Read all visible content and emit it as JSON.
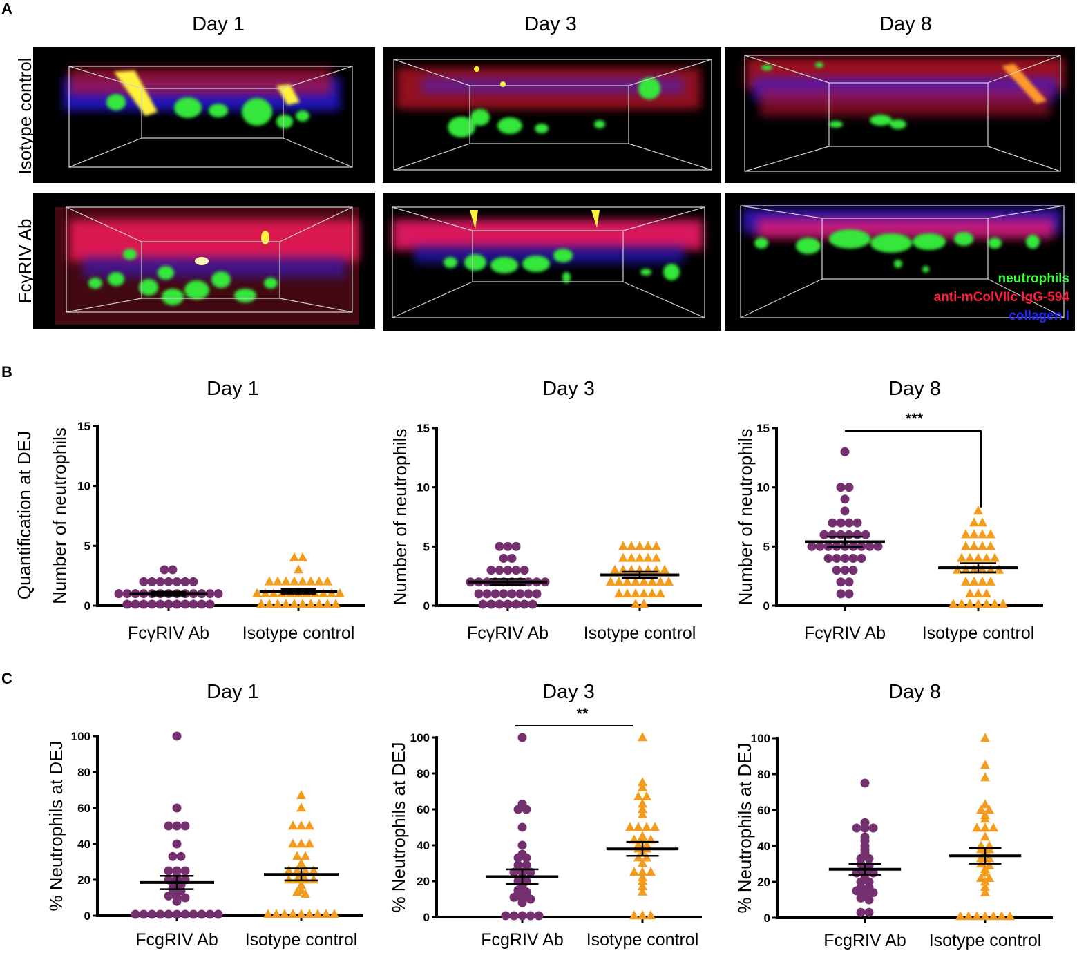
{
  "panel_labels": [
    "A",
    "B",
    "C"
  ],
  "colors": {
    "fcgriv": "#74306e",
    "isotype": "#f29b1d",
    "green": "#39ff3d",
    "red": "#ff1c3c",
    "blue": "#2424ff",
    "axis": "#000000"
  },
  "panel_a": {
    "columns": [
      "Day 1",
      "Day 3",
      "Day 8"
    ],
    "rows": [
      "Isotype control",
      "FcγRIV Ab"
    ],
    "legend": [
      {
        "label": "neutrophils",
        "color": "#39ff3d"
      },
      {
        "label": "anti-mColVIIc IgG-594",
        "color": "#ff1c3c"
      },
      {
        "label": "collagen I",
        "color": "#2424ff"
      }
    ]
  },
  "chart_data": [
    {
      "id": "b1",
      "type": "scatter",
      "panel": "B",
      "title": "Day 1",
      "ylabel": "Number of neutrophils",
      "row_label": "Quantification at DEJ",
      "categories": [
        "FcγRIV Ab",
        "Isotype control"
      ],
      "ylim": [
        0,
        15
      ],
      "yticks": [
        "0",
        "5",
        "10",
        "15"
      ],
      "series": [
        {
          "name": "FcγRIV Ab",
          "marker": "circle",
          "mean": 1.0,
          "values": [
            3,
            3,
            2,
            2,
            2,
            2,
            2,
            2,
            2,
            1,
            1,
            1,
            1,
            1,
            1,
            1,
            1,
            1,
            1,
            1,
            1,
            1,
            0,
            0,
            0,
            0,
            0,
            0,
            0,
            0,
            0,
            0,
            0
          ]
        },
        {
          "name": "Isotype control",
          "marker": "triangle",
          "mean": 1.2,
          "values": [
            4,
            4,
            3,
            2,
            2,
            2,
            2,
            2,
            2,
            2,
            2,
            1,
            1,
            1,
            1,
            1,
            1,
            1,
            1,
            1,
            1,
            1,
            0,
            0,
            0,
            0,
            0,
            0,
            0,
            0,
            0,
            0
          ]
        }
      ]
    },
    {
      "id": "b3",
      "type": "scatter",
      "panel": "B",
      "title": "Day 3",
      "ylabel": "Number of neutrophils",
      "categories": [
        "FcγRIV Ab",
        "Isotype control"
      ],
      "ylim": [
        0,
        15
      ],
      "yticks": [
        "0",
        "5",
        "10",
        "15"
      ],
      "series": [
        {
          "name": "FcγRIV Ab",
          "marker": "circle",
          "mean": 2.0,
          "values": [
            5,
            5,
            5,
            4,
            4,
            3,
            3,
            3,
            3,
            3,
            2,
            2,
            2,
            2,
            2,
            2,
            2,
            2,
            2,
            2,
            1,
            1,
            1,
            1,
            1,
            1,
            1,
            1,
            0,
            0,
            0,
            0,
            0,
            0,
            0
          ]
        },
        {
          "name": "Isotype control",
          "marker": "triangle",
          "mean": 2.6,
          "values": [
            5,
            5,
            5,
            5,
            5,
            4,
            4,
            4,
            4,
            4,
            3,
            3,
            3,
            3,
            3,
            3,
            3,
            2,
            2,
            2,
            2,
            2,
            2,
            2,
            2,
            1,
            1,
            1,
            1,
            1,
            1,
            0,
            0
          ]
        }
      ]
    },
    {
      "id": "b8",
      "type": "scatter",
      "panel": "B",
      "title": "Day 8",
      "ylabel": "Number of neutrophils",
      "categories": [
        "FcγRIV Ab",
        "Isotype control"
      ],
      "ylim": [
        0,
        15
      ],
      "yticks": [
        "0",
        "5",
        "10",
        "15"
      ],
      "significance": "***",
      "series": [
        {
          "name": "FcγRIV Ab",
          "marker": "circle",
          "mean": 5.4,
          "values": [
            13,
            10,
            10,
            9,
            8,
            7,
            7,
            7,
            7,
            6,
            6,
            6,
            6,
            6,
            6,
            5,
            5,
            5,
            5,
            5,
            5,
            5,
            5,
            5,
            4,
            4,
            4,
            4,
            4,
            3,
            3,
            3,
            2,
            2,
            1,
            1
          ]
        },
        {
          "name": "Isotype control",
          "marker": "triangle",
          "mean": 3.2,
          "values": [
            8,
            7,
            7,
            6,
            6,
            6,
            6,
            5,
            5,
            5,
            5,
            4,
            4,
            4,
            4,
            4,
            3,
            3,
            3,
            3,
            3,
            3,
            2,
            2,
            2,
            2,
            1,
            1,
            1,
            0,
            0,
            0,
            0,
            0,
            0,
            0
          ]
        }
      ]
    },
    {
      "id": "c1",
      "type": "scatter",
      "panel": "C",
      "title": "Day 1",
      "ylabel": "% Neutrophils at DEJ",
      "categories": [
        "FcgRIV Ab",
        "Isotype control"
      ],
      "ylim": [
        0,
        100
      ],
      "yticks": [
        "0",
        "20",
        "40",
        "60",
        "80",
        "100"
      ],
      "series": [
        {
          "name": "FcgRIV Ab",
          "marker": "circle",
          "mean": 18.5,
          "values": [
            100,
            60,
            50,
            50,
            50,
            40,
            33,
            33,
            25,
            25,
            25,
            22,
            20,
            20,
            20,
            18,
            17,
            15,
            14,
            13,
            11,
            10,
            10,
            8,
            0,
            0,
            0,
            0,
            0,
            0,
            0,
            0,
            0,
            0,
            0
          ]
        },
        {
          "name": "Isotype control",
          "marker": "triangle",
          "mean": 23.0,
          "values": [
            67,
            60,
            50,
            50,
            50,
            40,
            40,
            40,
            33,
            33,
            29,
            25,
            25,
            25,
            25,
            22,
            20,
            20,
            20,
            20,
            17,
            14,
            13,
            12,
            0,
            0,
            0,
            0,
            0,
            0,
            0,
            0,
            0
          ]
        }
      ]
    },
    {
      "id": "c3",
      "type": "scatter",
      "panel": "C",
      "title": "Day 3",
      "ylabel": "% Neutrophils at DEJ",
      "categories": [
        "FcgRIV Ab",
        "Isotype control"
      ],
      "ylim": [
        0,
        100
      ],
      "yticks": [
        "0",
        "20",
        "40",
        "60",
        "80",
        "100"
      ],
      "significance": "**",
      "series": [
        {
          "name": "FcgRIV Ab",
          "marker": "circle",
          "mean": 22.5,
          "values": [
            100,
            63,
            60,
            60,
            50,
            40,
            35,
            33,
            33,
            29,
            29,
            25,
            25,
            25,
            22,
            20,
            20,
            17,
            15,
            14,
            13,
            12,
            11,
            10,
            10,
            8,
            0,
            0,
            0,
            0,
            0
          ]
        },
        {
          "name": "Isotype control",
          "marker": "triangle",
          "mean": 38.0,
          "values": [
            100,
            75,
            72,
            67,
            67,
            63,
            60,
            57,
            50,
            50,
            50,
            50,
            45,
            43,
            43,
            43,
            40,
            40,
            38,
            38,
            36,
            33,
            33,
            30,
            25,
            25,
            25,
            22,
            20,
            17,
            14,
            0,
            0,
            0
          ]
        }
      ]
    },
    {
      "id": "c8",
      "type": "scatter",
      "panel": "C",
      "title": "Day 8",
      "ylabel": "% Neutrophils at DEJ",
      "categories": [
        "FcgRIV Ab",
        "Isotype control"
      ],
      "ylim": [
        0,
        100
      ],
      "yticks": [
        "0",
        "20",
        "40",
        "60",
        "80",
        "100"
      ],
      "series": [
        {
          "name": "FcgRIV Ab",
          "marker": "circle",
          "mean": 27.0,
          "values": [
            75,
            53,
            50,
            50,
            50,
            45,
            43,
            40,
            38,
            36,
            33,
            33,
            30,
            29,
            28,
            25,
            25,
            25,
            22,
            20,
            20,
            17,
            17,
            15,
            14,
            14,
            13,
            11,
            10,
            3,
            3
          ]
        },
        {
          "name": "Isotype control",
          "marker": "triangle",
          "mean": 34.5,
          "values": [
            100,
            85,
            78,
            63,
            60,
            60,
            57,
            55,
            50,
            50,
            50,
            45,
            40,
            40,
            38,
            38,
            36,
            33,
            33,
            30,
            29,
            27,
            25,
            22,
            22,
            20,
            17,
            14,
            0,
            0,
            0,
            0,
            0,
            0,
            0
          ]
        }
      ]
    }
  ]
}
